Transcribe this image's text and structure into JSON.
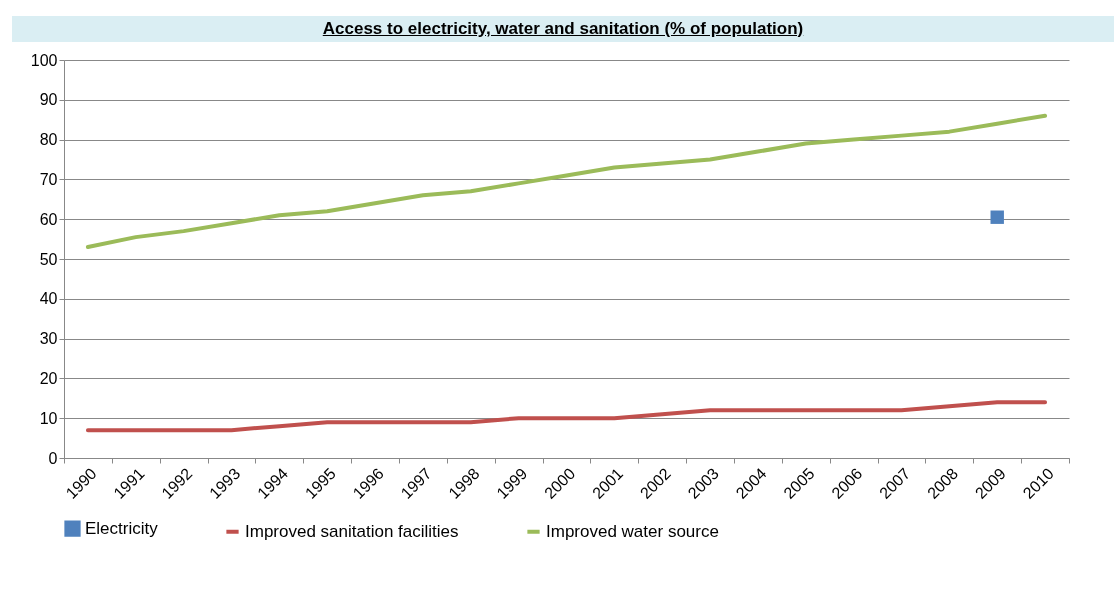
{
  "chart_data": {
    "type": "line",
    "title": "Access to electricity, water and sanitation (% of population)",
    "categories": [
      "1990",
      "1991",
      "1992",
      "1993",
      "1994",
      "1995",
      "1996",
      "1997",
      "1998",
      "1999",
      "2000",
      "2001",
      "2002",
      "2003",
      "2004",
      "2005",
      "2006",
      "2007",
      "2008",
      "2009",
      "2010"
    ],
    "series": [
      {
        "name": "Electricity",
        "type": "scatter",
        "marker": "square",
        "color": "#4f81bd",
        "values": [
          null,
          null,
          null,
          null,
          null,
          null,
          null,
          null,
          null,
          null,
          null,
          null,
          null,
          null,
          null,
          null,
          null,
          null,
          null,
          60.5,
          null
        ]
      },
      {
        "name": "Improved sanitation facilities",
        "marker": "none",
        "color": "#c0504d",
        "values": [
          7,
          7,
          7,
          7,
          8,
          9,
          9,
          9,
          9,
          10,
          10,
          10,
          11,
          12,
          12,
          12,
          12,
          12,
          13,
          14,
          14
        ]
      },
      {
        "name": "Improved water source",
        "marker": "none",
        "color": "#9bbb59",
        "values": [
          53,
          55.5,
          57,
          59,
          61,
          62,
          64,
          66,
          67,
          69,
          71,
          73,
          74,
          75,
          77,
          79,
          80,
          81,
          82,
          84,
          86
        ]
      }
    ],
    "ylim": [
      0,
      100
    ],
    "yticks": [
      0,
      10,
      20,
      30,
      40,
      50,
      60,
      70,
      80,
      90,
      100
    ],
    "grid": "y",
    "legend": "bottom"
  }
}
